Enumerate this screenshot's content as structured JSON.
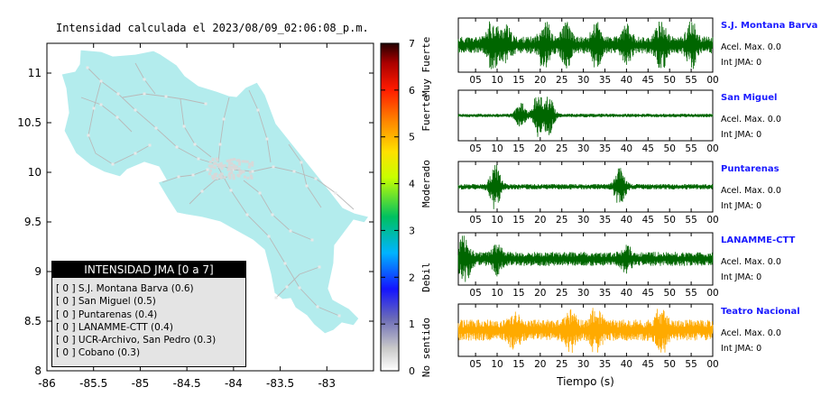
{
  "map": {
    "title": "Intensidad calculada el 2023/08/09_02:06:08_p.m.",
    "x_ticks": [
      "-86",
      "-85.5",
      "-85",
      "-84.5",
      "-84",
      "-83.5",
      "-83"
    ],
    "y_ticks": [
      "11",
      "10.5",
      "10",
      "9.5",
      "9",
      "8.5",
      "8"
    ],
    "xlim": [
      -86,
      -82.5
    ],
    "ylim": [
      8,
      11.3
    ],
    "land_color": "#b3eced"
  },
  "colorbar": {
    "ticks": [
      "0",
      "1",
      "2",
      "3",
      "4",
      "5",
      "6",
      "7"
    ],
    "labels": [
      "No sentido",
      "Debil",
      "Moderado",
      "Fuerte",
      "Muy Fuerte"
    ]
  },
  "legend": {
    "title": "INTENSIDAD JMA [0 a 7]",
    "items": [
      "[ 0 ]  S.J. Montana Barva (0.6)",
      "[ 0 ]  San Miguel (0.5)",
      "[ 0 ]  Puntarenas (0.4)",
      "[ 0 ]  LANAMME-CTT (0.4)",
      "[ 0 ]  UCR-Archivo, San Pedro (0.3)",
      "[ 0 ]  Cobano (0.3)"
    ]
  },
  "chart_data": {
    "type": "line",
    "xlabel": "Tiempo (s)",
    "x_ticks": [
      "05",
      "10",
      "15",
      "20",
      "25",
      "30",
      "35",
      "40",
      "45",
      "50",
      "55",
      "00"
    ],
    "xlim": [
      1,
      60
    ],
    "stations": [
      {
        "name": "S.J. Montana Barva",
        "acel": "Acel. Max. 0.0",
        "int": "Int JMA: 0",
        "color": "#006600",
        "bursts": [
          [
            9,
            1.0
          ],
          [
            12,
            0.55
          ],
          [
            21,
            0.95
          ],
          [
            26,
            0.7
          ],
          [
            33,
            0.7
          ],
          [
            40,
            0.55
          ],
          [
            48,
            0.9
          ],
          [
            55,
            0.8
          ]
        ],
        "noise": 0.35
      },
      {
        "name": "San Miguel",
        "acel": "Acel. Max. 0.0",
        "int": "Int JMA: 0",
        "color": "#006600",
        "bursts": [
          [
            15.5,
            0.55
          ],
          [
            19.5,
            1.0
          ],
          [
            22,
            0.85
          ]
        ],
        "noise": 0.08
      },
      {
        "name": "Puntarenas",
        "acel": "Acel. Max. 0.0",
        "int": "Int JMA: 0",
        "color": "#006600",
        "bursts": [
          [
            9.5,
            1.0
          ],
          [
            38.5,
            0.9
          ]
        ],
        "noise": 0.12
      },
      {
        "name": "LANAMME-CTT",
        "acel": "Acel. Max. 0.0",
        "int": "Int JMA: 0",
        "color": "#006600",
        "bursts": [
          [
            2.5,
            1.0
          ],
          [
            10,
            0.45
          ],
          [
            40,
            0.35
          ]
        ],
        "noise": 0.3
      },
      {
        "name": "Teatro Nacional",
        "acel": "Acel. Max. 0.0",
        "int": "Int JMA: 0",
        "color": "#ffaa00",
        "bursts": [
          [
            14,
            0.55
          ],
          [
            27,
            0.6
          ],
          [
            33,
            0.95
          ],
          [
            48,
            0.9
          ]
        ],
        "noise": 0.45
      }
    ]
  }
}
